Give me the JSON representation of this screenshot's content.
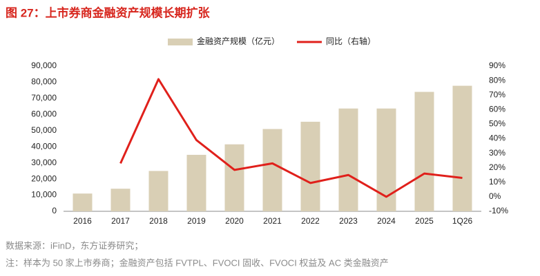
{
  "chart_data": {
    "type": "bar-line",
    "title": "图 27：上市券商金融资产规模长期扩张",
    "categories": [
      "2016",
      "2017",
      "2018",
      "2019",
      "2020",
      "2021",
      "2022",
      "2023",
      "2024",
      "2025",
      "1Q26"
    ],
    "series": [
      {
        "name": "金融资产规模（亿元）",
        "type": "bar",
        "color": "#d9cfb5",
        "values": [
          11000,
          14000,
          25000,
          35000,
          41500,
          51000,
          55500,
          63700,
          63700,
          74000,
          77800
        ]
      },
      {
        "name": "同比（右轴）",
        "type": "line",
        "axis": "y2",
        "color": "#e0201b",
        "values": [
          null,
          23,
          81,
          39,
          18.5,
          23,
          9.5,
          15,
          0,
          16,
          13
        ]
      }
    ],
    "ylim": [
      0,
      90000
    ],
    "yticks": [
      0,
      {
        "value": 10000,
        "label": "10,000"
      },
      {
        "value": 20000,
        "label": "20,000"
      },
      {
        "value": 30000,
        "label": "30,000"
      },
      {
        "value": 40000,
        "label": "40,000"
      },
      {
        "value": 50000,
        "label": "50,000"
      },
      {
        "value": 60000,
        "label": "60,000"
      },
      {
        "value": 70000,
        "label": "70,000"
      },
      {
        "value": 80000,
        "label": "80,000"
      },
      {
        "value": 90000,
        "label": "90,000"
      }
    ],
    "y2lim": [
      -10,
      90
    ],
    "y2ticks": [
      {
        "value": -10,
        "label": "-10%"
      },
      {
        "value": 0,
        "label": "0%"
      },
      {
        "value": 10,
        "label": "10%"
      },
      {
        "value": 20,
        "label": "20%"
      },
      {
        "value": 30,
        "label": "30%"
      },
      {
        "value": 40,
        "label": "40%"
      },
      {
        "value": 50,
        "label": "50%"
      },
      {
        "value": 60,
        "label": "60%"
      },
      {
        "value": 70,
        "label": "70%"
      },
      {
        "value": 80,
        "label": "80%"
      },
      {
        "value": 90,
        "label": "90%"
      }
    ],
    "grid": false,
    "source": "数据来源：iFinD，东方证券研究；",
    "note": "注：样本为 50 家上市券商；金融资产包括 FVTPL、FVOCI 固收、FVOCI 权益及 AC 类金融资产"
  }
}
